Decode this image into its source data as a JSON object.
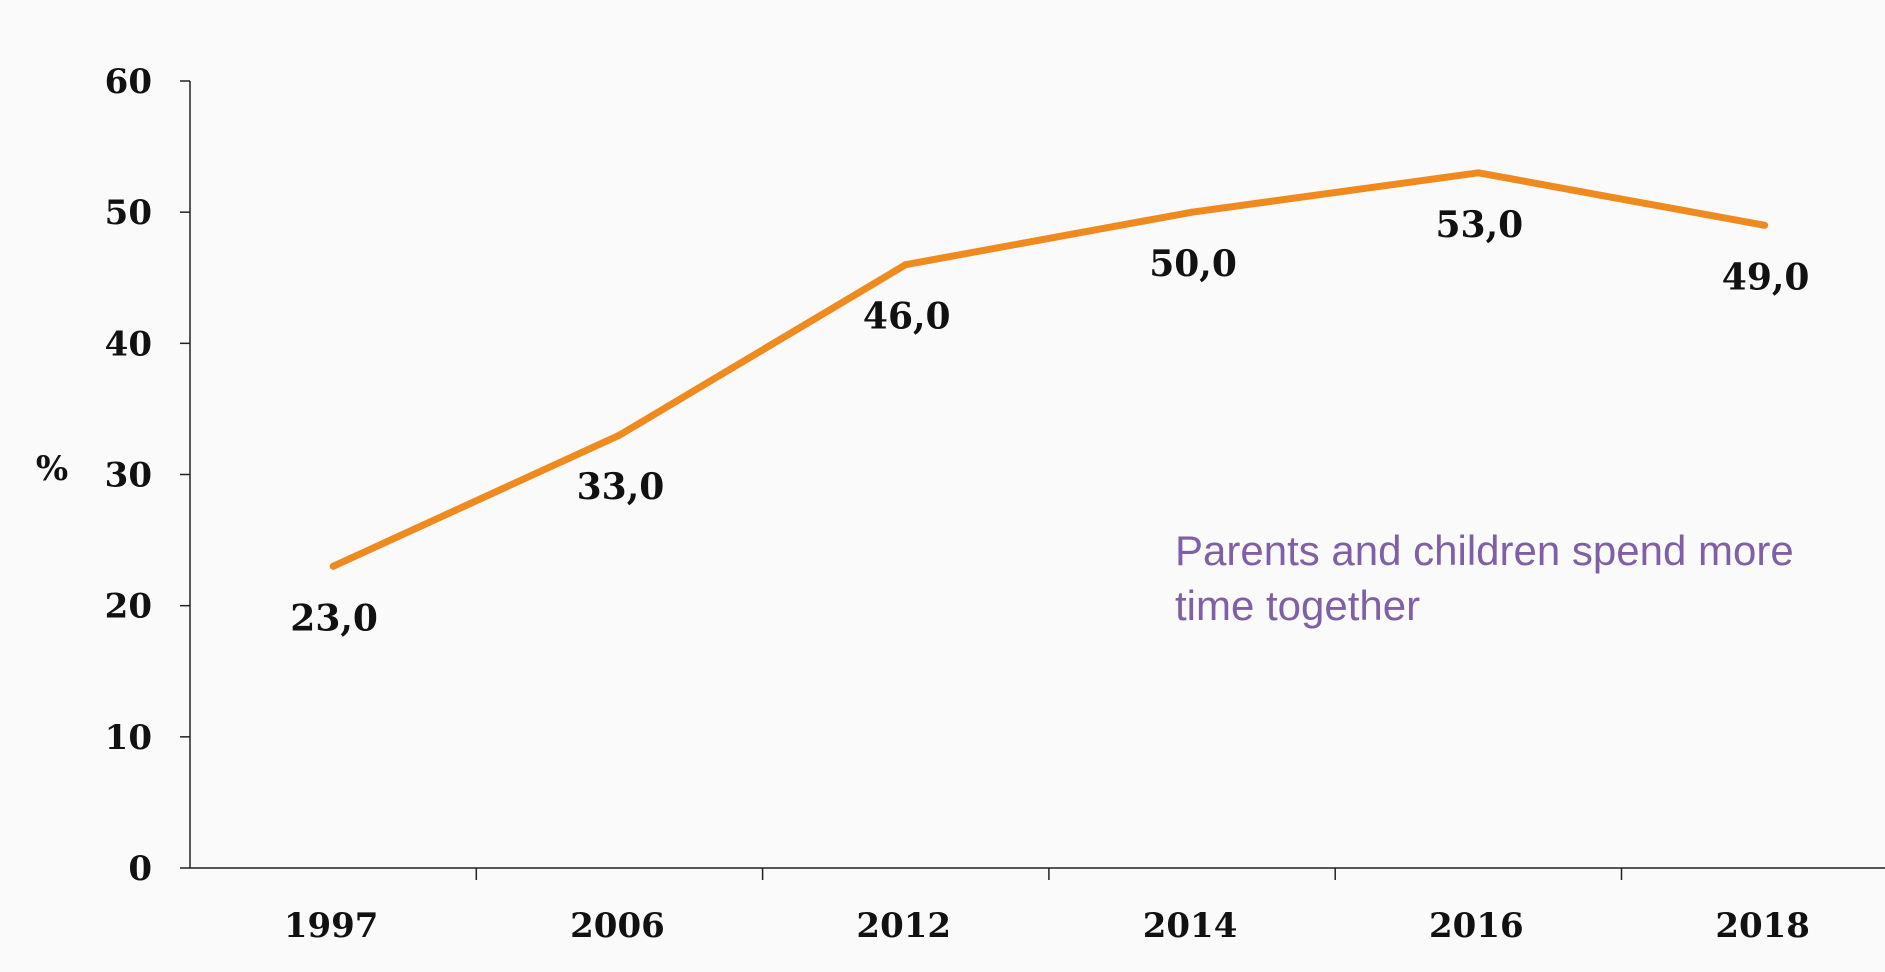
{
  "chart_data": {
    "type": "line",
    "categories": [
      "1997",
      "2006",
      "2012",
      "2014",
      "2016",
      "2018"
    ],
    "values": [
      23.0,
      33.0,
      46.0,
      50.0,
      53.0,
      49.0
    ],
    "value_labels": [
      "23,0",
      "33,0",
      "46,0",
      "50,0",
      "53,0",
      "49,0"
    ],
    "ylabel": "%",
    "ylim": [
      0,
      60
    ],
    "yticks": [
      0,
      10,
      20,
      30,
      40,
      50,
      60
    ],
    "ytick_labels": [
      "0",
      "10",
      "20",
      "30",
      "40",
      "50",
      "60"
    ],
    "grid": false,
    "line_color": "#ef8a1e",
    "annotation": {
      "lines": [
        "Parents and children spend more",
        "time together"
      ],
      "color": "#7f5fa6"
    }
  }
}
